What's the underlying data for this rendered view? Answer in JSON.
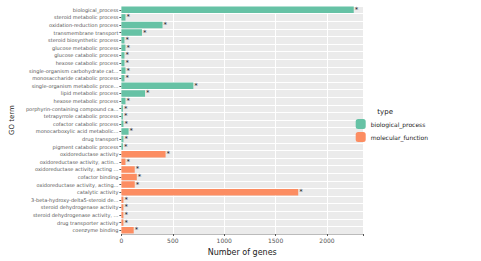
{
  "chart_data": {
    "type": "bar",
    "orientation": "horizontal",
    "x_label": "Number of genes",
    "y_label": "GO term",
    "legend_title": "type",
    "legend": "right",
    "annotation": "*",
    "grid": true,
    "categories": [
      "biological_process",
      "steroid metabolic process",
      "oxidation-reduction process",
      "transmembrane transport",
      "steroid biosynthetic process",
      "glucose metabolic process",
      "glucose catabolic process",
      "hexose catabolic process",
      "single-organism carbohydrate cat...",
      "monosaccharide catabolic process",
      "single-organism metabolic proce...",
      "lipid metabolic process",
      "hexose metabolic process",
      "porphyrin-containing compound ca...",
      "tetrapyrrole catabolic process",
      "cofactor catabolic process",
      "monocarboxylic acid metabolic...",
      "drug transport",
      "pigment catabolic process",
      "oxidoreductase activity",
      "oxidoreductase activity, actin...",
      "oxidoreductase activity, acting ...",
      "cofactor binding",
      "oxidoreductase activity, acting...",
      "catalytic activity",
      "3-beta-hydroxy-delta5-steroid de...",
      "steroid dehydrogenase activity",
      "steroid dehydrogenase activity, ...",
      "drug transporter activity",
      "coenzyme binding"
    ],
    "series": [
      {
        "name": "biological_process",
        "color": "#66c2a5",
        "values": [
          2260,
          40,
          400,
          200,
          30,
          40,
          30,
          30,
          40,
          30,
          700,
          230,
          40,
          15,
          15,
          20,
          70,
          20,
          15,
          null,
          null,
          null,
          null,
          null,
          null,
          null,
          null,
          null,
          null,
          null
        ]
      },
      {
        "name": "molecular_function",
        "color": "#fc8d62",
        "values": [
          null,
          null,
          null,
          null,
          null,
          null,
          null,
          null,
          null,
          null,
          null,
          null,
          null,
          null,
          null,
          null,
          null,
          null,
          null,
          430,
          40,
          130,
          150,
          130,
          1720,
          20,
          20,
          20,
          20,
          120
        ]
      }
    ],
    "xlim": [
      0,
      2350
    ],
    "xticks": [
      0,
      500,
      1000,
      1500,
      2000
    ]
  }
}
